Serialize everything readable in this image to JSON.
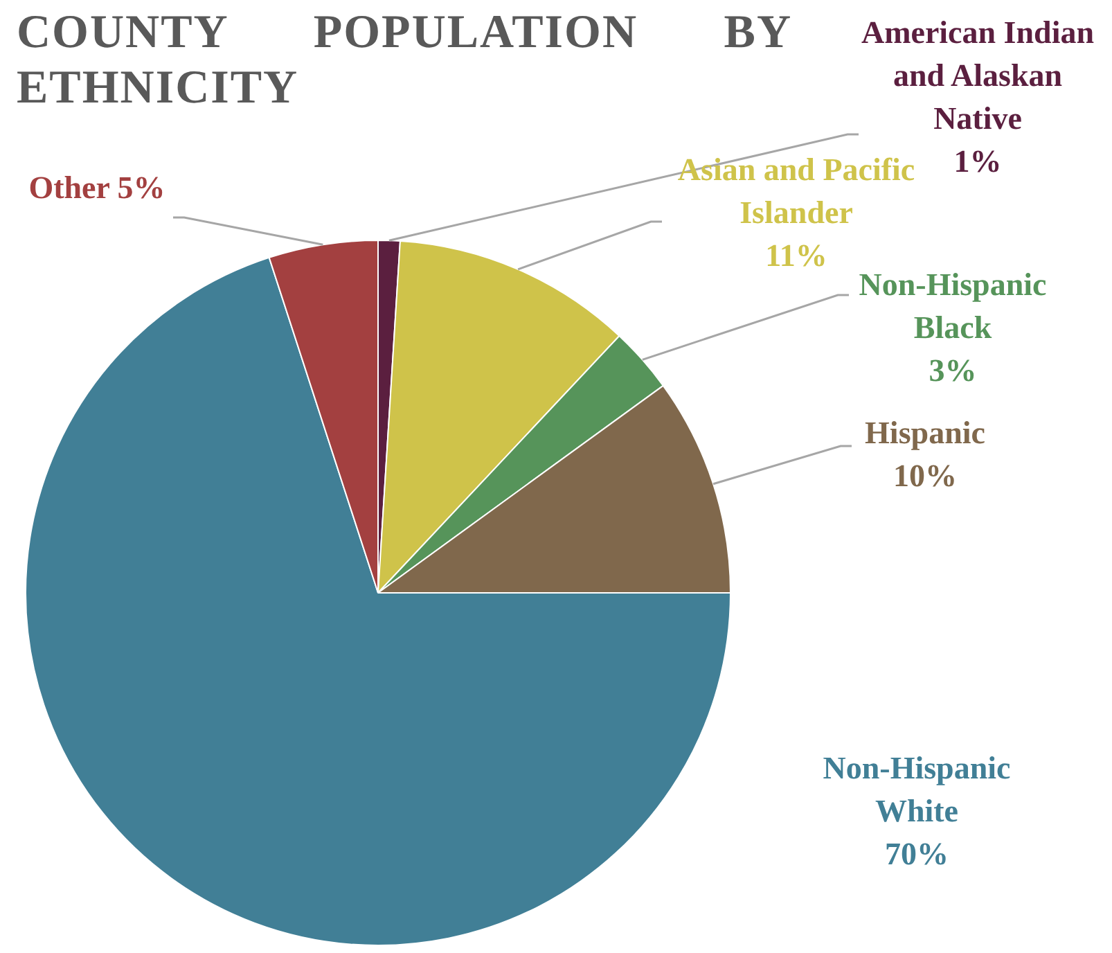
{
  "chart_data": {
    "type": "pie",
    "title": "COUNTY POPULATION BY ETHNICITY",
    "categories": [
      "American Indian and Alaskan Native",
      "Asian and Pacific Islander",
      "Non-Hispanic Black",
      "Hispanic",
      "Non-Hispanic White",
      "Other"
    ],
    "values": [
      1,
      11,
      3,
      10,
      70,
      5
    ],
    "colors": [
      "#5b1f3f",
      "#cfc34a",
      "#56945a",
      "#80684c",
      "#417f96",
      "#a34040"
    ],
    "value_labels": [
      "1%",
      "11%",
      "3%",
      "10%",
      "70%",
      "5%"
    ]
  }
}
